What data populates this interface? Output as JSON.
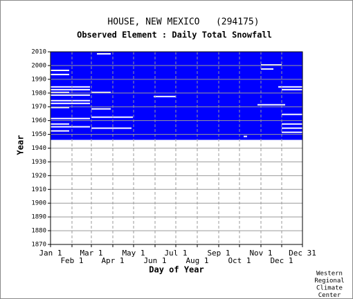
{
  "chart_data": {
    "type": "availability",
    "title": "HOUSE, NEW MEXICO   (294175)",
    "subtitle": "Observed Element : Daily Total Snowfall",
    "x_label": "Day of Year",
    "y_label": "Year",
    "credit": [
      "Western",
      "Regional",
      "Climate",
      "Center"
    ],
    "color": "#0000ff",
    "grid": true,
    "xlim": [
      1,
      365
    ],
    "xticks": [
      {
        "value": 1,
        "label": "Jan 1"
      },
      {
        "value": 32,
        "label": "Feb 1"
      },
      {
        "value": 60,
        "label": "Mar 1"
      },
      {
        "value": 91,
        "label": "Apr 1"
      },
      {
        "value": 121,
        "label": "May 1"
      },
      {
        "value": 152,
        "label": "Jun 1"
      },
      {
        "value": 182,
        "label": "Jul 1"
      },
      {
        "value": 213,
        "label": "Aug 1"
      },
      {
        "value": 244,
        "label": "Sep 1"
      },
      {
        "value": 274,
        "label": "Oct 1"
      },
      {
        "value": 305,
        "label": "Nov 1"
      },
      {
        "value": 335,
        "label": "Dec 1"
      },
      {
        "value": 365,
        "label": "Dec 31"
      }
    ],
    "ylim": [
      1870,
      2010
    ],
    "yticks": [
      1870,
      1880,
      1890,
      1900,
      1910,
      1920,
      1930,
      1940,
      1950,
      1960,
      1970,
      1980,
      1990,
      2000,
      2010
    ],
    "coverage": {
      "start_year": 1947,
      "end_year": 2010
    },
    "missing": [
      [
        1997,
        1,
        28
      ],
      [
        1994,
        1,
        28
      ],
      [
        1985,
        1,
        58
      ],
      [
        1983,
        1,
        58
      ],
      [
        1981,
        1,
        28
      ],
      [
        1979,
        1,
        58
      ],
      [
        1975,
        1,
        58
      ],
      [
        1973,
        1,
        58
      ],
      [
        1970,
        1,
        28
      ],
      [
        1962,
        1,
        58
      ],
      [
        1958,
        1,
        28
      ],
      [
        1956,
        1,
        58
      ],
      [
        1953,
        1,
        28
      ],
      [
        1969,
        60,
        88
      ],
      [
        1981,
        60,
        88
      ],
      [
        1963,
        60,
        120
      ],
      [
        1955,
        60,
        118
      ],
      [
        1978,
        150,
        182
      ],
      [
        2009,
        68,
        88
      ],
      [
        2001,
        305,
        335
      ],
      [
        1998,
        305,
        323
      ],
      [
        1985,
        330,
        365
      ],
      [
        1983,
        335,
        365
      ],
      [
        1972,
        300,
        340
      ],
      [
        1965,
        335,
        365
      ],
      [
        1958,
        335,
        365
      ],
      [
        1955,
        335,
        365
      ],
      [
        1952,
        335,
        365
      ],
      [
        1949,
        280,
        285
      ]
    ]
  }
}
